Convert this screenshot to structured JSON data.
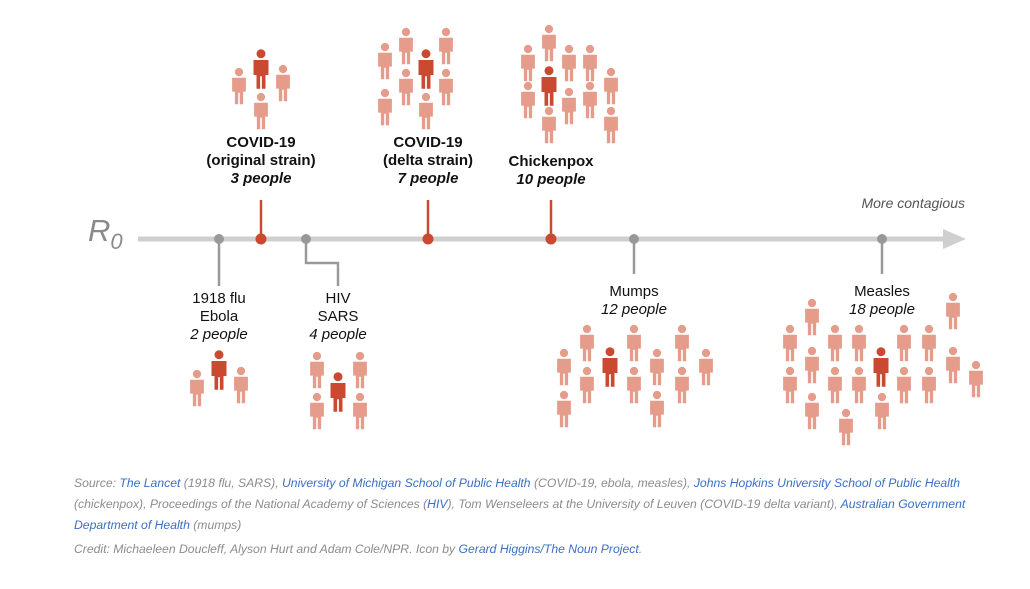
{
  "axis": {
    "label_main": "R",
    "label_sub": "0",
    "direction_label": "More contagious",
    "line_color": "#cfcfcf",
    "highlight_color": "#c94a30",
    "neutral_color": "#999999"
  },
  "icon": {
    "name": "person-icon",
    "infected_color": "#c94a30",
    "contact_color": "#e59c8a"
  },
  "diseases": [
    {
      "id": "flu-ebola",
      "names": [
        "1918 flu",
        "Ebola"
      ],
      "count_text": "2 people",
      "r0": 2,
      "position": "below",
      "highlight": false
    },
    {
      "id": "covid-original",
      "names": [
        "COVID-19",
        "(original strain)"
      ],
      "count_text": "3 people",
      "r0": 3,
      "position": "above",
      "highlight": true
    },
    {
      "id": "hiv-sars",
      "names": [
        "HIV",
        "SARS"
      ],
      "count_text": "4 people",
      "r0": 4,
      "position": "below",
      "highlight": false
    },
    {
      "id": "covid-delta",
      "names": [
        "COVID-19",
        "(delta strain)"
      ],
      "count_text": "7 people",
      "r0": 7,
      "position": "above",
      "highlight": true
    },
    {
      "id": "chickenpox",
      "names": [
        "Chickenpox"
      ],
      "count_text": "10 people",
      "r0": 10,
      "position": "above",
      "highlight": true
    },
    {
      "id": "mumps",
      "names": [
        "Mumps"
      ],
      "count_text": "12 people",
      "r0": 12,
      "position": "below",
      "highlight": false
    },
    {
      "id": "measles",
      "names": [
        "Measles"
      ],
      "count_text": "18 people",
      "r0": 18,
      "position": "below",
      "highlight": false
    }
  ],
  "source": {
    "prefix": "Source: ",
    "parts": [
      {
        "text": "The Lancet",
        "link": true
      },
      {
        "text": " (1918 flu, SARS), ",
        "link": false
      },
      {
        "text": "University of Michigan School of Public Health",
        "link": true
      },
      {
        "text": " (COVID-19, ebola, measles), ",
        "link": false
      },
      {
        "text": "Johns Hopkins University School of Public Health",
        "link": true
      },
      {
        "text": " (chickenpox), Proceedings of the National Academy of Sciences (",
        "link": false
      },
      {
        "text": "HIV",
        "link": true
      },
      {
        "text": "), Tom Wenseleers at the University of Leuven (COVID-19 delta variant), ",
        "link": false
      },
      {
        "text": "Australian Government Department of Health",
        "link": true
      },
      {
        "text": " (mumps)",
        "link": false
      }
    ]
  },
  "credit": {
    "text": "Credit: Michaeleen Doucleff, Alyson Hurt and Adam Cole/NPR. Icon by ",
    "link_text": "Gerard Higgins/The Noun Project",
    "suffix": "."
  }
}
